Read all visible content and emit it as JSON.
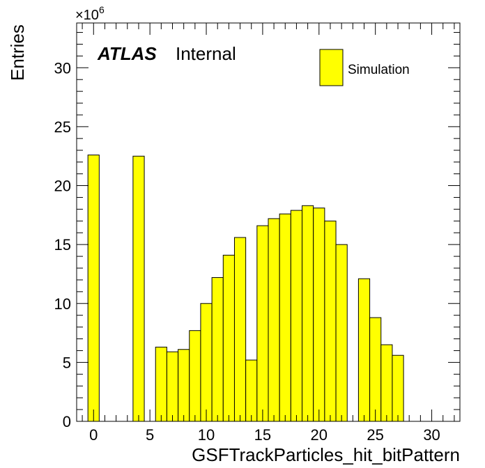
{
  "chart_data": {
    "type": "bar",
    "style": "histogram",
    "x_bin_low_edges": [
      -0.5,
      0.5,
      1.5,
      2.5,
      3.5,
      4.5,
      5.5,
      6.5,
      7.5,
      8.5,
      9.5,
      10.5,
      11.5,
      12.5,
      13.5,
      14.5,
      15.5,
      16.5,
      17.5,
      18.5,
      19.5,
      20.5,
      21.5,
      22.5,
      23.5,
      24.5,
      25.5,
      26.5,
      27.5,
      28.5,
      29.5,
      30.5,
      31.5
    ],
    "values": [
      22.6,
      0,
      0,
      0,
      22.5,
      0,
      6.3,
      5.9,
      6.1,
      7.7,
      10.0,
      12.2,
      14.1,
      15.6,
      5.2,
      16.6,
      17.2,
      17.6,
      17.9,
      18.3,
      18.1,
      17.0,
      15.0,
      0,
      12.1,
      8.8,
      6.5,
      5.6,
      0,
      0,
      0,
      0,
      0
    ],
    "x_tick_labels": [
      "0",
      "5",
      "10",
      "15",
      "20",
      "25",
      "30"
    ],
    "y_tick_labels": [
      "0",
      "5",
      "10",
      "15",
      "20",
      "25",
      "30"
    ],
    "xlim": [
      -1.5,
      32.5
    ],
    "ylim": [
      0,
      33.8
    ],
    "y_multiplier": "×10",
    "y_multiplier_exponent": "6",
    "xlabel": "GSFTrackParticles_hit_bitPattern",
    "ylabel": "Entries",
    "atlas_label": "ATLAS",
    "atlas_status": "Internal",
    "legend": [
      {
        "name": "Simulation",
        "color": "#ffff00"
      }
    ],
    "legend_position": "top-right",
    "fill_color": "#ffff00",
    "line_color": "#000000",
    "grid": false
  }
}
